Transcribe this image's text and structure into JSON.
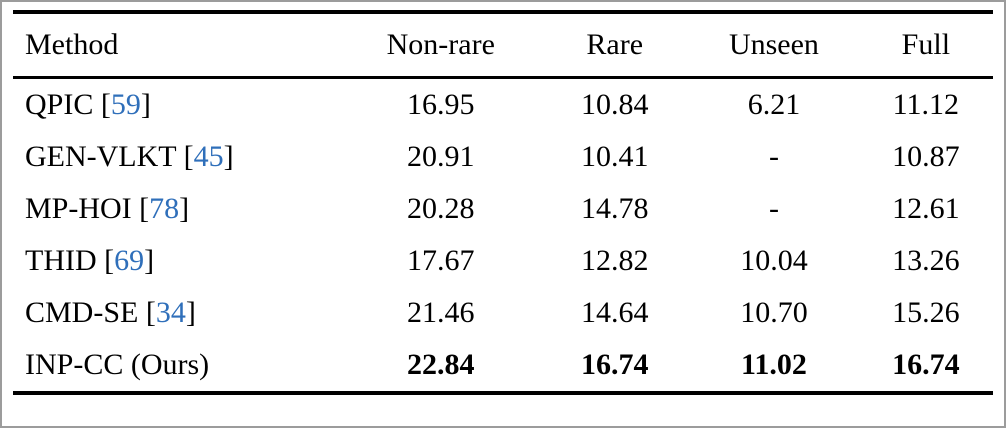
{
  "colors": {
    "citation": "#2f6fba",
    "rule": "#000000"
  },
  "table": {
    "columns": [
      "Method",
      "Non-rare",
      "Rare",
      "Unseen",
      "Full"
    ],
    "rows": [
      {
        "name": "QPIC",
        "ref": "59",
        "values": [
          "16.95",
          "10.84",
          "6.21",
          "11.12"
        ],
        "bold": false
      },
      {
        "name": "GEN-VLKT",
        "ref": "45",
        "values": [
          "20.91",
          "10.41",
          "-",
          "10.87"
        ],
        "bold": false
      },
      {
        "name": "MP-HOI",
        "ref": "78",
        "values": [
          "20.28",
          "14.78",
          "-",
          "12.61"
        ],
        "bold": false
      },
      {
        "name": "THID",
        "ref": "69",
        "values": [
          "17.67",
          "12.82",
          "10.04",
          "13.26"
        ],
        "bold": false
      },
      {
        "name": "CMD-SE",
        "ref": "34",
        "values": [
          "21.46",
          "14.64",
          "10.70",
          "15.26"
        ],
        "bold": false
      },
      {
        "name": "INP-CC (Ours)",
        "ref": null,
        "values": [
          "22.84",
          "16.74",
          "11.02",
          "16.74"
        ],
        "bold": true
      }
    ]
  }
}
